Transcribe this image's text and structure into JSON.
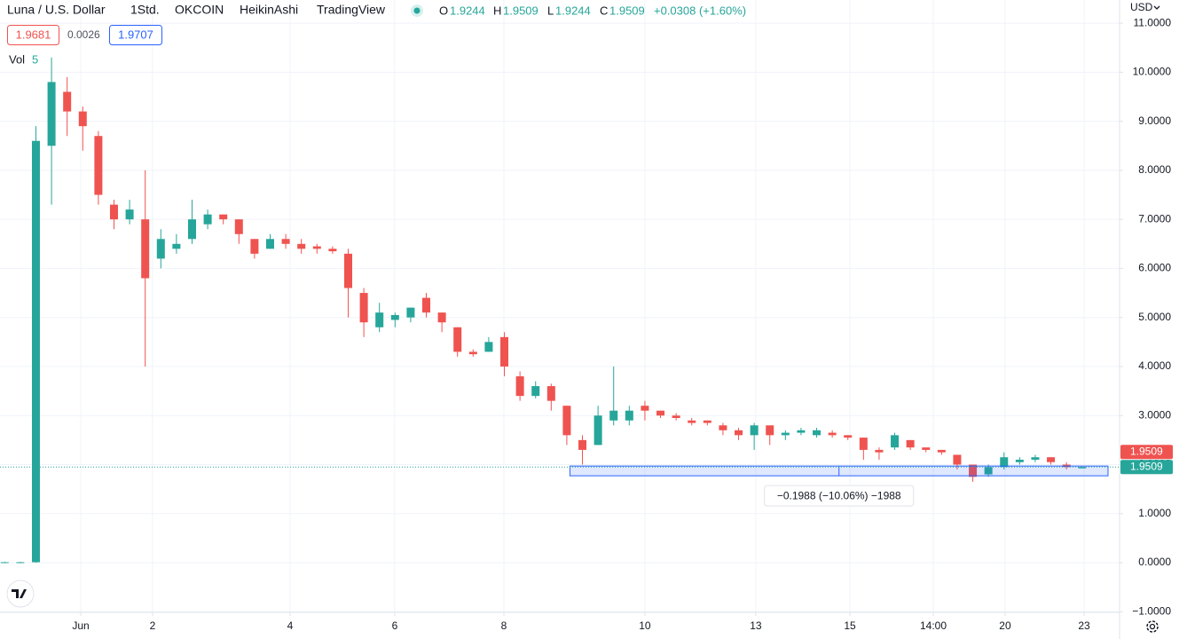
{
  "chart_data": {
    "type": "candlestick",
    "title": "Luna / U.S. Dollar",
    "interval": "1Std.",
    "exchange": "OKCOIN",
    "chart_style": "HeikinAshi",
    "source": "TradingView",
    "ohlc_legend": {
      "o_label": "O",
      "o": 1.9244,
      "h_label": "H",
      "h": 1.9509,
      "l_label": "L",
      "l": 1.9244,
      "c_label": "C",
      "c": 1.9509,
      "change": "+0.0308 (+1.60%)"
    },
    "price_boxes": {
      "sell": 1.9681,
      "spread": 0.0026,
      "buy": 1.9707
    },
    "volume_label": "Vol",
    "volume_value": 5,
    "currency": "USD",
    "up_color": "#26a69a",
    "down_color": "#ef5350",
    "grid": true,
    "x": [
      0,
      1,
      2,
      3,
      4,
      5,
      6,
      7,
      8,
      9,
      10,
      11,
      12,
      13,
      14,
      15,
      16,
      17,
      18,
      19,
      20,
      21,
      22,
      23,
      24,
      25,
      26,
      27,
      28,
      29,
      30,
      31,
      32,
      33,
      34,
      35,
      36,
      37,
      38,
      39,
      40,
      41,
      42,
      43,
      44,
      45,
      46,
      47,
      48,
      49,
      50,
      51,
      52,
      53,
      54,
      55,
      56,
      57,
      58,
      59,
      60,
      61,
      62,
      63,
      64,
      65,
      66,
      67,
      68,
      69
    ],
    "ohlc": {
      "open": [
        0.01,
        0.01,
        0.01,
        8.5,
        9.6,
        9.2,
        8.7,
        7.3,
        7.0,
        7.0,
        6.2,
        6.4,
        6.6,
        6.9,
        7.1,
        7.0,
        6.6,
        6.4,
        6.6,
        6.5,
        6.45,
        6.4,
        6.3,
        5.5,
        4.8,
        4.95,
        5.0,
        5.4,
        5.1,
        4.8,
        4.3,
        4.3,
        4.6,
        3.8,
        3.4,
        3.6,
        3.2,
        2.5,
        2.4,
        2.9,
        2.9,
        3.2,
        3.1,
        3.0,
        2.9,
        2.9,
        2.8,
        2.7,
        2.6,
        2.8,
        2.6,
        2.65,
        2.6,
        2.65,
        2.6,
        2.55,
        2.3,
        2.35,
        2.5,
        2.35,
        2.3,
        2.2,
        2.0,
        1.8,
        1.95,
        2.05,
        2.1,
        2.15,
        2.0,
        1.9244
      ],
      "high": [
        0.02,
        0.02,
        8.9,
        10.3,
        9.9,
        9.3,
        8.8,
        7.4,
        7.4,
        8.0,
        6.8,
        6.7,
        7.4,
        7.2,
        7.1,
        7.0,
        6.6,
        6.7,
        6.7,
        6.6,
        6.5,
        6.45,
        6.4,
        5.6,
        5.3,
        5.1,
        5.2,
        5.5,
        5.1,
        4.8,
        4.35,
        4.6,
        4.7,
        3.9,
        3.7,
        3.65,
        3.2,
        2.6,
        3.2,
        4.0,
        3.2,
        3.3,
        3.1,
        3.05,
        2.95,
        2.9,
        2.85,
        2.75,
        2.85,
        2.8,
        2.7,
        2.75,
        2.75,
        2.7,
        2.6,
        2.55,
        2.35,
        2.65,
        2.5,
        2.35,
        2.3,
        2.2,
        2.0,
        2.0,
        2.25,
        2.15,
        2.2,
        2.15,
        2.05,
        1.9509
      ],
      "low": [
        0.0,
        0.0,
        0.0,
        7.3,
        8.7,
        8.4,
        7.3,
        6.8,
        6.9,
        4.0,
        6.0,
        6.3,
        6.5,
        6.8,
        6.9,
        6.5,
        6.2,
        6.4,
        6.4,
        6.3,
        6.3,
        6.3,
        5.0,
        4.6,
        4.7,
        4.8,
        4.9,
        5.0,
        4.7,
        4.2,
        4.2,
        4.3,
        3.8,
        3.3,
        3.35,
        3.1,
        2.4,
        2.0,
        2.4,
        2.8,
        2.8,
        2.9,
        2.95,
        2.9,
        2.8,
        2.8,
        2.6,
        2.5,
        2.3,
        2.4,
        2.5,
        2.6,
        2.55,
        2.55,
        2.5,
        2.1,
        2.1,
        2.3,
        2.3,
        2.25,
        2.2,
        1.9,
        1.65,
        1.75,
        1.9,
        2.0,
        2.05,
        2.0,
        1.9,
        1.9244
      ],
      "close": [
        0.01,
        0.01,
        8.6,
        9.8,
        9.2,
        8.9,
        7.5,
        7.0,
        7.2,
        5.8,
        6.6,
        6.5,
        7.0,
        7.1,
        7.0,
        6.7,
        6.3,
        6.6,
        6.5,
        6.4,
        6.4,
        6.35,
        5.6,
        4.9,
        5.1,
        5.05,
        5.2,
        5.1,
        4.9,
        4.3,
        4.25,
        4.5,
        4.0,
        3.4,
        3.6,
        3.3,
        2.6,
        2.3,
        3.0,
        3.1,
        3.1,
        3.1,
        3.0,
        2.95,
        2.85,
        2.85,
        2.7,
        2.6,
        2.8,
        2.6,
        2.65,
        2.7,
        2.7,
        2.6,
        2.55,
        2.3,
        2.25,
        2.6,
        2.35,
        2.3,
        2.25,
        2.0,
        1.75,
        1.95,
        2.15,
        2.1,
        2.15,
        2.05,
        1.95,
        1.9509
      ]
    },
    "xlim": [
      -0.3,
      71.4
    ],
    "xticks": [
      {
        "value": 4.87,
        "label": "Jun"
      },
      {
        "value": 9.47,
        "label": "2"
      },
      {
        "value": 18.28,
        "label": "4"
      },
      {
        "value": 24.98,
        "label": "6"
      },
      {
        "value": 31.97,
        "label": "8"
      },
      {
        "value": 41.0,
        "label": "10"
      },
      {
        "value": 48.1,
        "label": "13"
      },
      {
        "value": 54.13,
        "label": "15"
      },
      {
        "value": 59.47,
        "label": "14:00"
      },
      {
        "value": 64.07,
        "label": "20"
      },
      {
        "value": 69.13,
        "label": "23"
      }
    ],
    "ylim": [
      -1.0,
      11.4
    ],
    "yticks": [
      {
        "value": 11,
        "label": "11.0000"
      },
      {
        "value": 10,
        "label": "10.0000"
      },
      {
        "value": 9,
        "label": "9.0000"
      },
      {
        "value": 8,
        "label": "8.0000"
      },
      {
        "value": 7,
        "label": "7.0000"
      },
      {
        "value": 6,
        "label": "6.0000"
      },
      {
        "value": 5,
        "label": "5.0000"
      },
      {
        "value": 4,
        "label": "4.0000"
      },
      {
        "value": 3,
        "label": "3.0000"
      },
      {
        "value": 2,
        "label": "2.0000"
      },
      {
        "value": 1,
        "label": "1.0000"
      },
      {
        "value": 0,
        "label": "0.0000"
      },
      {
        "value": -1,
        "label": "−1.0000"
      }
    ],
    "price_labels": [
      {
        "value": 1.9509,
        "color": "#ef5350"
      },
      {
        "value": 1.9509,
        "color": "#26a69a"
      }
    ],
    "measure": {
      "x_start": 36.2,
      "x_end": 70.66,
      "top": 1.9707,
      "bottom": 1.7719,
      "label": "−0.1988 (−10.06%) −1988"
    }
  }
}
